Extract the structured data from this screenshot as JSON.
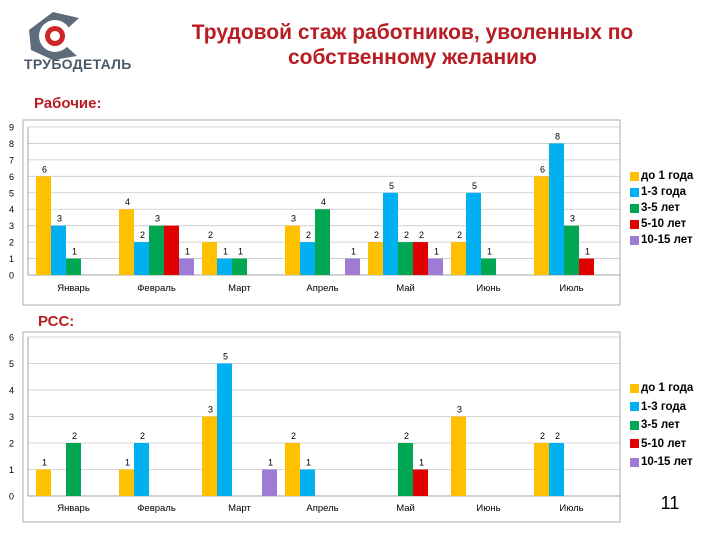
{
  "header": {
    "title": "Трудовой стаж работников, уволенных по собственному желанию",
    "logo_text": "ТРУБОДЕТАЛЬ"
  },
  "colors": {
    "series": [
      "#FFC000",
      "#00B0F0",
      "#00A651",
      "#E00000",
      "#9E7BD4"
    ],
    "title": "#B81D24",
    "logo": "#4A5868",
    "axis": "#888888",
    "grid": "#C8C8C8"
  },
  "page_number": "11",
  "chart_data": [
    {
      "type": "bar",
      "section_label": "Рабочие:",
      "categories": [
        "Январь",
        "Февраль",
        "Март",
        "Апрель",
        "Май",
        "Июнь",
        "Июль"
      ],
      "series": [
        {
          "name": "до 1 года",
          "values": [
            6,
            4,
            2,
            3,
            2,
            2,
            6
          ]
        },
        {
          "name": "1-3 года",
          "values": [
            3,
            2,
            1,
            2,
            5,
            5,
            8
          ]
        },
        {
          "name": "3-5 лет",
          "values": [
            1,
            3,
            1,
            4,
            2,
            1,
            3
          ]
        },
        {
          "name": "5-10 лет",
          "values": [
            null,
            3,
            null,
            null,
            2,
            null,
            1
          ]
        },
        {
          "name": "10-15 лет",
          "values": [
            null,
            1,
            null,
            1,
            1,
            null,
            null
          ]
        }
      ],
      "labels": [
        [
          "6",
          "4",
          "2",
          "3",
          "2",
          "2",
          "6"
        ],
        [
          "3",
          "2",
          "1",
          "2",
          "5",
          "5",
          "8"
        ],
        [
          "1",
          "3",
          "1",
          "4",
          "2",
          "1",
          "3"
        ],
        [
          "",
          "",
          "",
          "",
          "2",
          "",
          "1"
        ],
        [
          "",
          "1",
          "",
          "1",
          "1",
          "",
          ""
        ]
      ],
      "yticks": [
        "0",
        "1",
        "2",
        "3",
        "4",
        "5",
        "6",
        "7",
        "8",
        "9"
      ],
      "ylim": [
        0,
        9
      ],
      "legend_position": "right",
      "grid": true
    },
    {
      "type": "bar",
      "section_label": "РСС:",
      "categories": [
        "Январь",
        "Февраль",
        "Март",
        "Апрель",
        "Май",
        "Июнь",
        "Июль"
      ],
      "series": [
        {
          "name": "до 1 года",
          "values": [
            1,
            1,
            3,
            2,
            null,
            3,
            2
          ]
        },
        {
          "name": "1-3 года",
          "values": [
            null,
            2,
            5,
            1,
            null,
            null,
            2
          ]
        },
        {
          "name": "3-5 лет",
          "values": [
            2,
            null,
            null,
            null,
            2,
            null,
            null
          ]
        },
        {
          "name": "5-10 лет",
          "values": [
            null,
            null,
            null,
            null,
            1,
            null,
            null
          ]
        },
        {
          "name": "10-15 лет",
          "values": [
            null,
            null,
            1,
            null,
            null,
            null,
            null
          ]
        }
      ],
      "labels": [
        [
          "1",
          "1",
          "3",
          "2",
          "",
          "3",
          "2"
        ],
        [
          "",
          "2",
          "5",
          "1",
          "",
          "",
          "2"
        ],
        [
          "2",
          "",
          "",
          "",
          "2",
          "",
          ""
        ],
        [
          "",
          "",
          "",
          "",
          "1",
          "",
          ""
        ],
        [
          "",
          "",
          "1",
          "",
          "",
          "",
          ""
        ]
      ],
      "yticks": [
        "0",
        "1",
        "2",
        "3",
        "4",
        "5",
        "6"
      ],
      "ylim": [
        0,
        6
      ],
      "legend_position": "right",
      "grid": true
    }
  ]
}
